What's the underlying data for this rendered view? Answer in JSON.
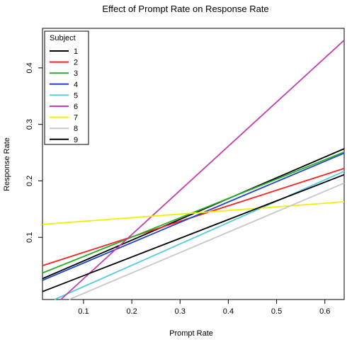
{
  "chart_data": {
    "type": "line",
    "title": "Effect of Prompt Rate on Response Rate",
    "xlabel": "Prompt Rate",
    "ylabel": "Response Rate",
    "xlim": [
      0.015,
      0.64
    ],
    "ylim": [
      -0.01,
      0.47
    ],
    "xticks": [
      0.1,
      0.2,
      0.3,
      0.4,
      0.5,
      0.6
    ],
    "yticks": [
      0.1,
      0.2,
      0.3,
      0.4
    ],
    "xtick_labels": [
      "0.1",
      "0.2",
      "0.3",
      "0.4",
      "0.5",
      "0.6"
    ],
    "ytick_labels": [
      "0.1",
      "0.2",
      "0.3",
      "0.4"
    ],
    "grid": false,
    "legend": {
      "title": "Subject",
      "position": "top-left"
    },
    "series": [
      {
        "name": "1",
        "color": "#000000",
        "x": [
          0.015,
          0.64
        ],
        "y": [
          0.027,
          0.257
        ]
      },
      {
        "name": "2",
        "color": "#ff2020",
        "x": [
          0.015,
          0.64
        ],
        "y": [
          0.05,
          0.222
        ]
      },
      {
        "name": "3",
        "color": "#22b022",
        "x": [
          0.015,
          0.64
        ],
        "y": [
          0.037,
          0.251
        ]
      },
      {
        "name": "4",
        "color": "#2244cc",
        "x": [
          0.015,
          0.64
        ],
        "y": [
          0.024,
          0.249
        ]
      },
      {
        "name": "5",
        "color": "#55ccdd",
        "x": [
          0.04,
          0.64
        ],
        "y": [
          -0.01,
          0.217
        ]
      },
      {
        "name": "6",
        "color": "#c040b0",
        "x": [
          0.053,
          0.64
        ],
        "y": [
          -0.01,
          0.449
        ]
      },
      {
        "name": "7",
        "color": "#f0f000",
        "x": [
          0.015,
          0.64
        ],
        "y": [
          0.123,
          0.163
        ]
      },
      {
        "name": "8",
        "color": "#c8c8c8",
        "x": [
          0.07,
          0.64
        ],
        "y": [
          -0.01,
          0.196
        ]
      },
      {
        "name": "9",
        "color": "#000000",
        "x": [
          0.015,
          0.64
        ],
        "y": [
          0.004,
          0.211
        ]
      }
    ]
  }
}
